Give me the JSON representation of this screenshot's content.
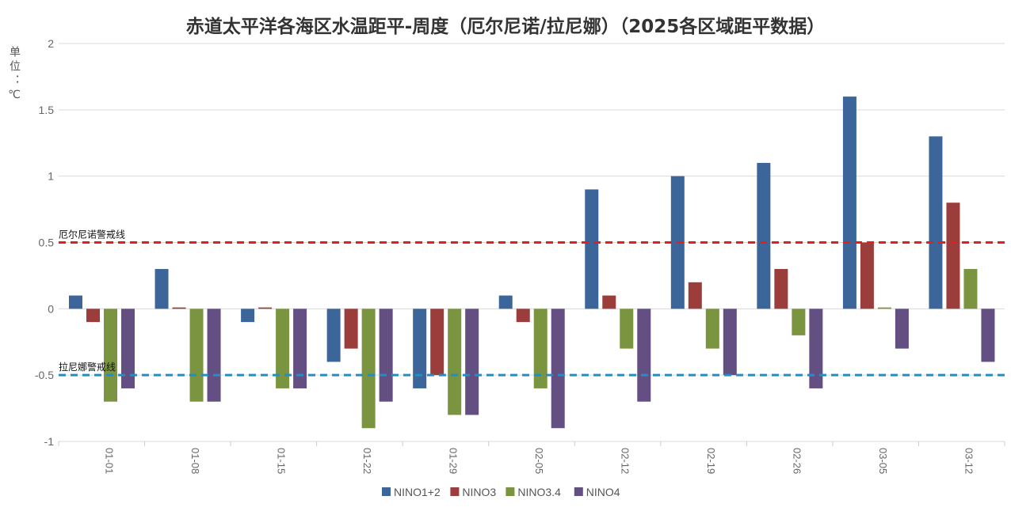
{
  "chart_data": {
    "type": "bar",
    "title": "赤道太平洋各海区水温距平-周度（厄尔尼诺/拉尼娜）（2025各区域距平数据）",
    "ylabel": "单位：℃",
    "xlabel": "",
    "ylim": [
      -1,
      2
    ],
    "yticks": [
      "-1",
      "-0.5",
      "0",
      "0.5",
      "1",
      "1.5",
      "2"
    ],
    "grid": true,
    "legend": "bottom",
    "categories": [
      "01-01",
      "01-08",
      "01-15",
      "01-22",
      "01-29",
      "02-05",
      "02-12",
      "02-19",
      "02-26",
      "03-05",
      "03-12"
    ],
    "series": [
      {
        "name": "NINO1+2",
        "color": "#3c6699",
        "values": [
          0.1,
          0.3,
          -0.1,
          -0.4,
          -0.6,
          0.1,
          0.9,
          1.0,
          1.1,
          1.6,
          1.3
        ]
      },
      {
        "name": "NINO3",
        "color": "#9b3d3b",
        "values": [
          -0.1,
          0.01,
          0.01,
          -0.3,
          -0.5,
          -0.1,
          0.1,
          0.2,
          0.3,
          0.5,
          0.8
        ]
      },
      {
        "name": "NINO3.4",
        "color": "#7a9440",
        "values": [
          -0.7,
          -0.7,
          -0.6,
          -0.9,
          -0.8,
          -0.6,
          -0.3,
          -0.3,
          -0.2,
          0.01,
          0.3
        ]
      },
      {
        "name": "NINO4",
        "color": "#644f82",
        "values": [
          -0.6,
          -0.7,
          -0.6,
          -0.7,
          -0.8,
          -0.9,
          -0.7,
          -0.5,
          -0.6,
          -0.3,
          -0.4
        ]
      }
    ],
    "reference_lines": [
      {
        "label": "厄尔尼诺警戒线",
        "value": 0.5,
        "color": "#e0201c"
      },
      {
        "label": "拉尼娜警戒线",
        "value": -0.5,
        "color": "#1e8fc8"
      }
    ]
  }
}
